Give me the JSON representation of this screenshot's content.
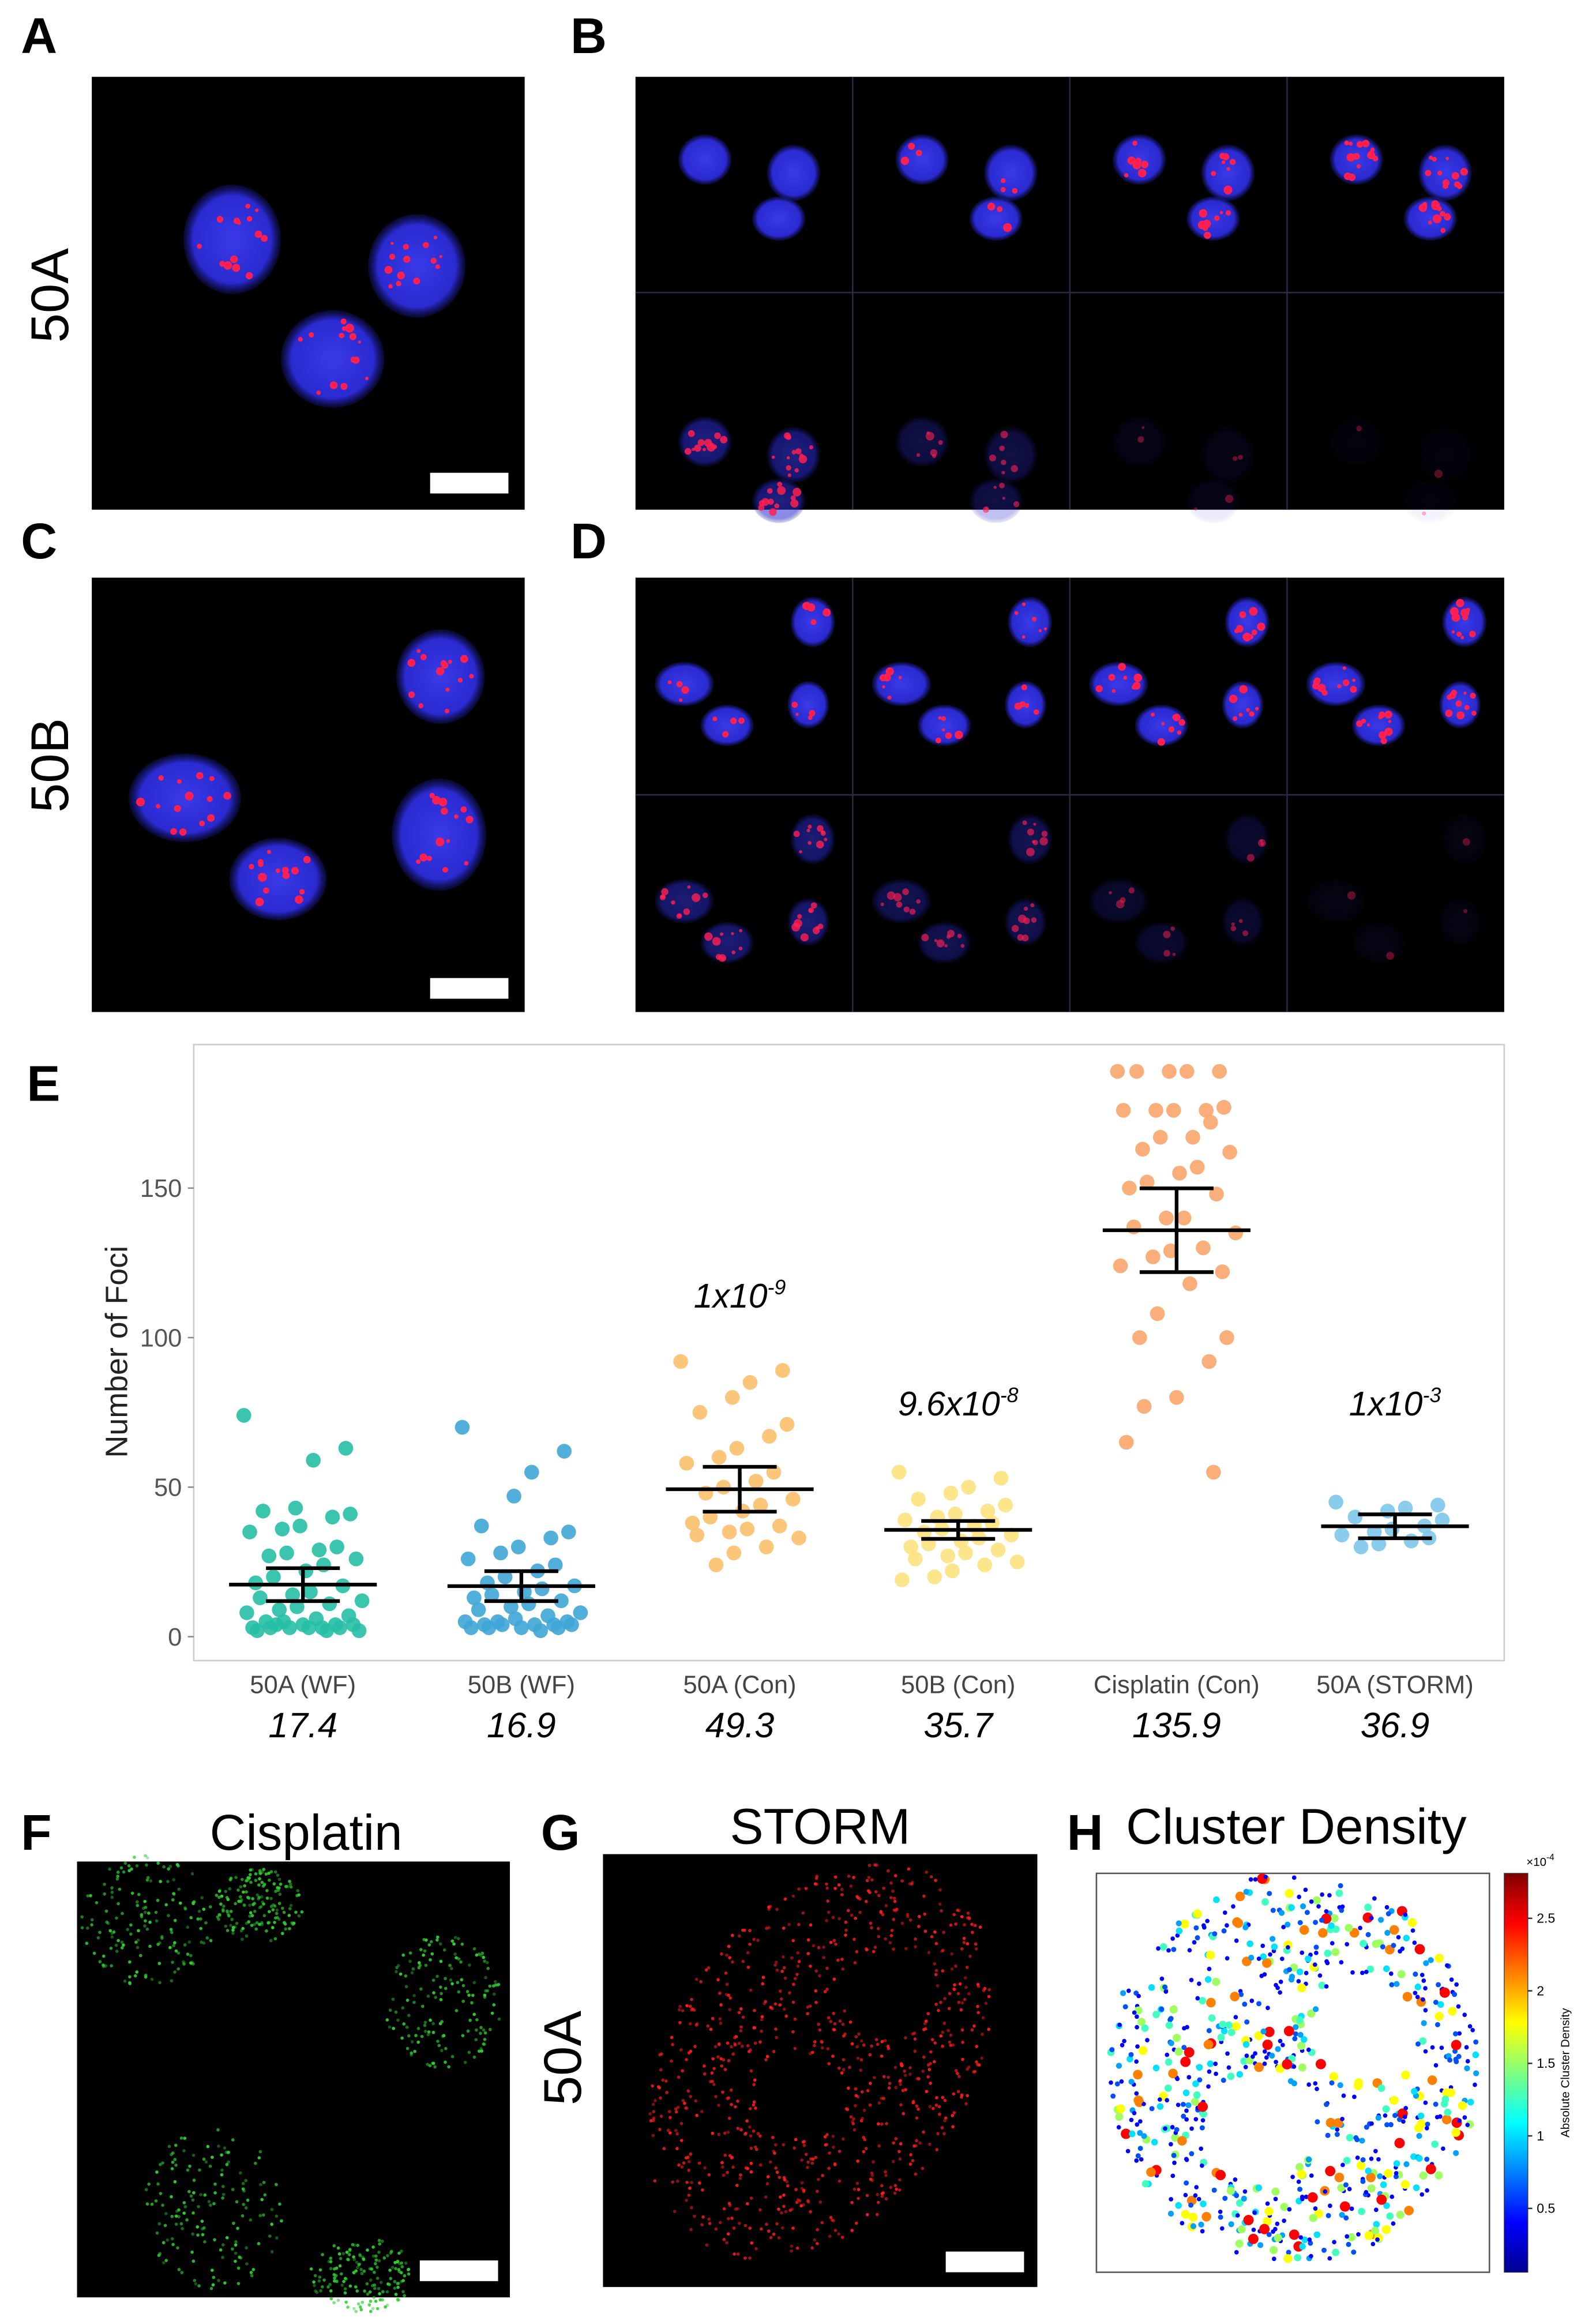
{
  "panel_labels": [
    "A",
    "B",
    "C",
    "D",
    "E",
    "F",
    "G",
    "H"
  ],
  "row_labels": [
    "50A",
    "50B"
  ],
  "panel_f": {
    "title": "Cisplatin"
  },
  "panel_g": {
    "row_label": "50A",
    "title": "STORM"
  },
  "panel_h": {
    "title": "Cluster Density",
    "colorbar": {
      "label": "Absolute Cluster Density",
      "multiplier": "×10",
      "exponent": "-4",
      "lim": [
        0.06,
        2.81
      ],
      "ticks": [
        0.5,
        1,
        1.5,
        2,
        2.5
      ]
    }
  },
  "chart_data": {
    "type": "strip",
    "y_label": "Number of Foci",
    "categories": [
      "50A (WF)",
      "50B (WF)",
      "50A (Con)",
      "50B (Con)",
      "Cisplatin (Con)",
      "50A (STORM)"
    ],
    "ylim": [
      -8,
      198
    ],
    "yticks": [
      0,
      50,
      100,
      150
    ],
    "series": [
      {
        "color": "#26bfa5",
        "mean": 17.4,
        "error": 5.5,
        "values": [
          74,
          63,
          59,
          43,
          42,
          41,
          40,
          37,
          36,
          35,
          30,
          29,
          28,
          27,
          26,
          24,
          22,
          20,
          18,
          17,
          15,
          14,
          13,
          12,
          11,
          10,
          9,
          8,
          7,
          6,
          5,
          5,
          4,
          4,
          4,
          3,
          3,
          3,
          3,
          3,
          2,
          2,
          2,
          3,
          4
        ]
      },
      {
        "color": "#3ea6d6",
        "mean": 16.9,
        "error": 5,
        "values": [
          70,
          62,
          55,
          47,
          37,
          35,
          33,
          30,
          28,
          26,
          24,
          22,
          20,
          18,
          17,
          16,
          15,
          14,
          13,
          12,
          11,
          10,
          9,
          8,
          7,
          6,
          5,
          5,
          5,
          4,
          4,
          4,
          4,
          4,
          3,
          3,
          3,
          3,
          2
        ]
      },
      {
        "color": "#fbbf6c",
        "mean": 49.3,
        "error": 7.5,
        "p_value": {
          "base": "1x10",
          "exponent": "-9"
        },
        "values": [
          92,
          89,
          85,
          80,
          75,
          71,
          67,
          63,
          60,
          58,
          55,
          52,
          50,
          48,
          46,
          44,
          42,
          40,
          38,
          37,
          36,
          35,
          34,
          33,
          30,
          28,
          24
        ]
      },
      {
        "color": "#fde27e",
        "mean": 35.7,
        "error": 3,
        "p_value": {
          "base": "9.6x10",
          "exponent": "-8"
        },
        "values": [
          55,
          53,
          50,
          48,
          46,
          44,
          42,
          41,
          40,
          39,
          38,
          37,
          36,
          35,
          34,
          33,
          32,
          31,
          30,
          29,
          28,
          27,
          26,
          25,
          24,
          22,
          20,
          19
        ]
      },
      {
        "color": "#f9a56c",
        "mean": 135.9,
        "error": 14,
        "values": [
          189,
          189,
          189,
          189,
          189,
          177,
          176,
          176,
          176,
          176,
          172,
          167,
          167,
          163,
          162,
          157,
          155,
          152,
          150,
          148,
          140,
          140,
          137,
          135,
          130,
          129,
          127,
          124,
          122,
          118,
          108,
          100,
          100,
          92,
          80,
          77,
          65,
          55
        ]
      },
      {
        "color": "#7dc6ea",
        "mean": 36.9,
        "error": 4,
        "p_value": {
          "base": "1x10",
          "exponent": "-3"
        },
        "values": [
          45,
          44,
          43,
          42,
          40,
          39,
          37,
          36,
          35,
          34,
          33,
          32,
          31,
          30
        ]
      }
    ]
  }
}
